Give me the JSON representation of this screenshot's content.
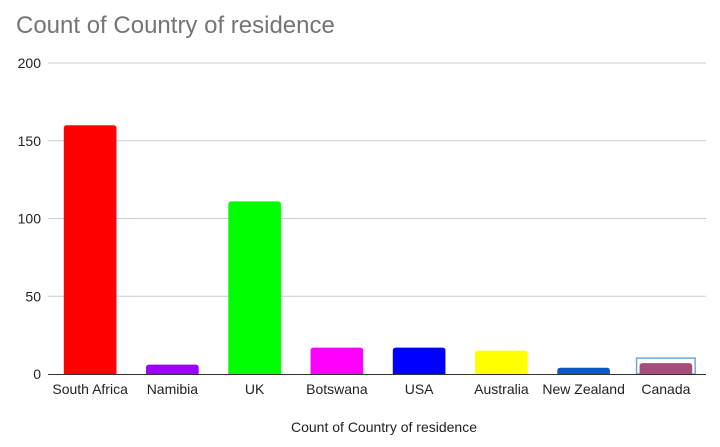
{
  "chart_data": {
    "type": "bar",
    "title": "Count of Country of residence",
    "xlabel": "Count of Country of residence",
    "ylabel": "",
    "categories": [
      "South Africa",
      "Namibia",
      "UK",
      "Botswana",
      "USA",
      "Australia",
      "New Zealand",
      "Canada"
    ],
    "values": [
      160,
      6,
      111,
      17,
      17,
      15,
      4,
      7
    ],
    "colors": [
      "#ff0000",
      "#9900ff",
      "#00ff00",
      "#ff00ff",
      "#0000ff",
      "#ffff00",
      "#1155cc",
      "#a64d79"
    ],
    "highlighted_category": "Canada",
    "ylim": [
      0,
      200
    ],
    "yticks": [
      0,
      50,
      100,
      150,
      200
    ],
    "grid": true,
    "legend": "none"
  }
}
